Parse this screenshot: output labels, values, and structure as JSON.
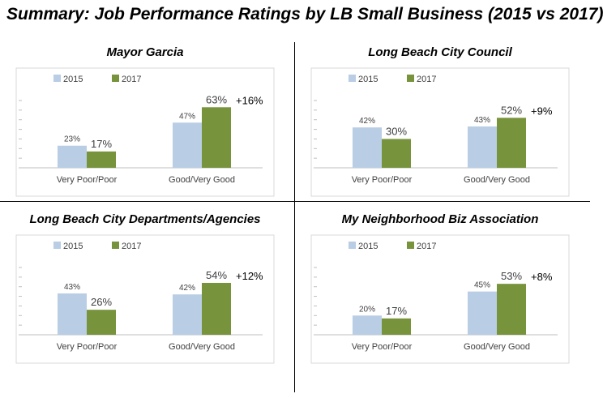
{
  "title": "Summary: Job Performance Ratings by LB Small Business (2015 vs 2017)",
  "colors": {
    "s2015": "#b9cde5",
    "s2017": "#77933c",
    "frame": "#d9d9d9",
    "axis": "#bfbfbf",
    "text": "#404040"
  },
  "chart_data": [
    {
      "type": "bar",
      "title": "Mayor Garcia",
      "categories": [
        "Very Poor/Poor",
        "Good/Very Good"
      ],
      "series": [
        {
          "name": "2015",
          "values": [
            23,
            47
          ]
        },
        {
          "name": "2017",
          "values": [
            17,
            63
          ]
        }
      ],
      "value_labels": [
        [
          "23%",
          "47%"
        ],
        [
          "17%",
          "63%"
        ]
      ],
      "change_label": "+16%",
      "ylim": [
        0,
        70
      ]
    },
    {
      "type": "bar",
      "title": "Long Beach City Council",
      "categories": [
        "Very Poor/Poor",
        "Good/Very Good"
      ],
      "series": [
        {
          "name": "2015",
          "values": [
            42,
            43
          ]
        },
        {
          "name": "2017",
          "values": [
            30,
            52
          ]
        }
      ],
      "value_labels": [
        [
          "42%",
          "43%"
        ],
        [
          "30%",
          "52%"
        ]
      ],
      "change_label": "+9%",
      "ylim": [
        0,
        70
      ]
    },
    {
      "type": "bar",
      "title": "Long Beach City Departments/Agencies",
      "categories": [
        "Very Poor/Poor",
        "Good/Very Good"
      ],
      "series": [
        {
          "name": "2015",
          "values": [
            43,
            42
          ]
        },
        {
          "name": "2017",
          "values": [
            26,
            54
          ]
        }
      ],
      "value_labels": [
        [
          "43%",
          "42%"
        ],
        [
          "26%",
          "54%"
        ]
      ],
      "change_label": "+12%",
      "ylim": [
        0,
        70
      ]
    },
    {
      "type": "bar",
      "title": "My Neighborhood Biz Association",
      "categories": [
        "Very Poor/Poor",
        "Good/Very Good"
      ],
      "series": [
        {
          "name": "2015",
          "values": [
            20,
            45
          ]
        },
        {
          "name": "2017",
          "values": [
            17,
            53
          ]
        }
      ],
      "value_labels": [
        [
          "20%",
          "45%"
        ],
        [
          "17%",
          "53%"
        ]
      ],
      "change_label": "+8%",
      "ylim": [
        0,
        70
      ]
    }
  ]
}
